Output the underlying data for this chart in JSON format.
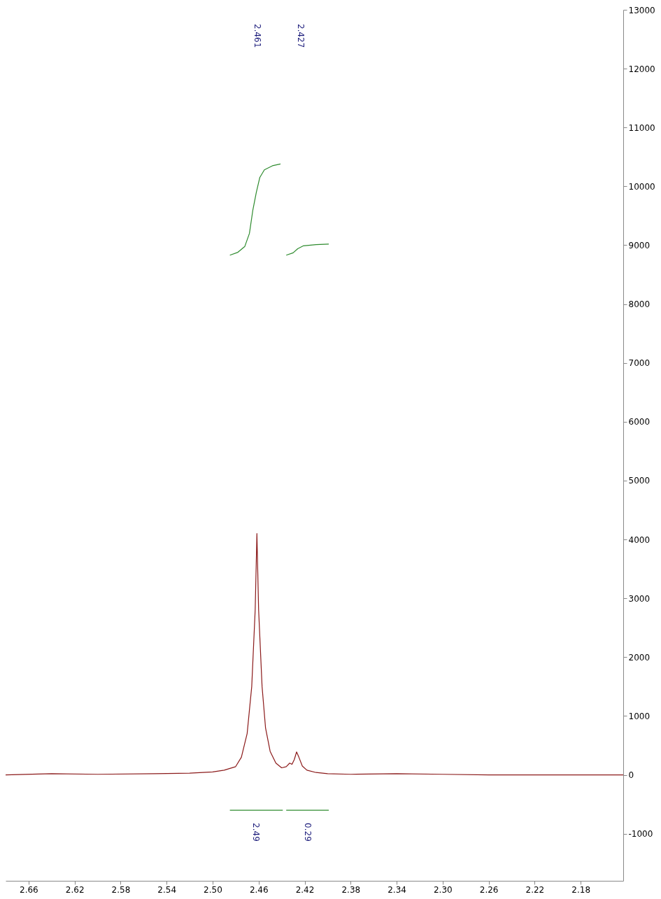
{
  "chart_data": {
    "type": "line",
    "xlim": [
      2.68,
      2.143
    ],
    "ylim": [
      -1800,
      13000
    ],
    "xticks": [
      2.66,
      2.62,
      2.58,
      2.54,
      {
        "value": 2.5,
        "label": "2.50"
      },
      2.46,
      2.42,
      2.38,
      2.34,
      {
        "value": 2.3,
        "label": "2.30"
      },
      2.26,
      2.22,
      2.18
    ],
    "yticks": [
      -1000,
      0,
      1000,
      2000,
      3000,
      4000,
      5000,
      6000,
      7000,
      8000,
      9000,
      10000,
      11000,
      12000,
      13000
    ],
    "grid": false,
    "marker": "none",
    "line_style": "solid",
    "series": [
      {
        "color": "#8b1a1a",
        "x": [
          2.68,
          2.64,
          2.6,
          2.55,
          2.52,
          2.5,
          2.49,
          2.48,
          2.475,
          2.47,
          2.466,
          2.463,
          2.4615,
          2.46,
          2.457,
          2.454,
          2.45,
          2.445,
          2.44,
          2.436,
          2.433,
          2.431,
          2.429,
          2.427,
          2.425,
          2.422,
          2.418,
          2.41,
          2.4,
          2.38,
          2.34,
          2.3,
          2.26,
          2.143
        ],
        "values": [
          0,
          20,
          10,
          20,
          30,
          50,
          80,
          140,
          300,
          700,
          1500,
          2800,
          4100,
          2800,
          1500,
          800,
          400,
          200,
          120,
          140,
          200,
          180,
          260,
          390,
          300,
          150,
          80,
          40,
          20,
          10,
          20,
          10,
          0,
          0
        ]
      },
      {
        "color": "#2e8b2e",
        "x": [
          2.485,
          2.478,
          2.472,
          2.468,
          2.465,
          2.462,
          2.459,
          2.455,
          2.448,
          2.441
        ],
        "values": [
          8830,
          8880,
          8980,
          9200,
          9600,
          9900,
          10150,
          10280,
          10350,
          10380
        ]
      },
      {
        "color": "#2e8b2e",
        "x": [
          2.436,
          2.43,
          2.426,
          2.421,
          2.41,
          2.399
        ],
        "values": [
          8830,
          8870,
          8940,
          8990,
          9010,
          9020
        ]
      },
      {
        "color": "#2e8b2e",
        "x": [
          2.485,
          2.439
        ],
        "values": [
          -600,
          -600
        ]
      },
      {
        "color": "#2e8b2e",
        "x": [
          2.436,
          2.399
        ],
        "values": [
          -600,
          -600
        ]
      }
    ],
    "annotations": [
      "2.461",
      "2.427",
      {
        "text": "2.49",
        "x": 2.462,
        "y": -600
      },
      {
        "text": "0.29",
        "x": 2.4175,
        "y": -600
      }
    ]
  }
}
